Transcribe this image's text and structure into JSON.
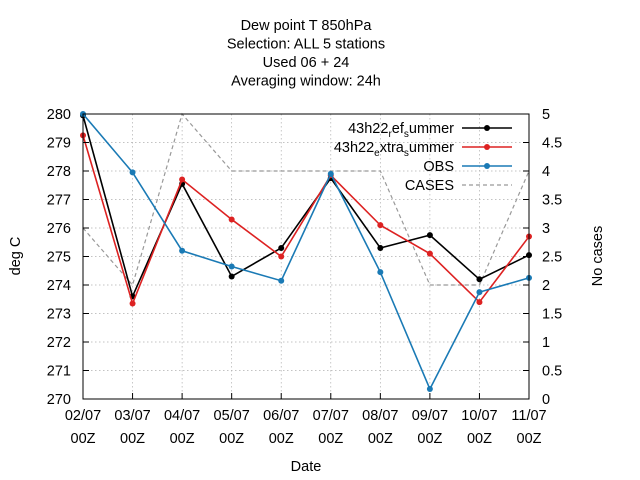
{
  "chart_data": {
    "type": "line",
    "title_lines": [
      "Dew point T 850hPa",
      "Selection: ALL       5 stations",
      "Used  06  + 24",
      "Averaging window: 24h"
    ],
    "xlabel": "Date",
    "ylabel": "deg C",
    "y2label": "No cases",
    "x_ticks": [
      {
        "date": "02/07",
        "hour": "00Z"
      },
      {
        "date": "03/07",
        "hour": "00Z"
      },
      {
        "date": "04/07",
        "hour": "00Z"
      },
      {
        "date": "05/07",
        "hour": "00Z"
      },
      {
        "date": "06/07",
        "hour": "00Z"
      },
      {
        "date": "07/07",
        "hour": "00Z"
      },
      {
        "date": "08/07",
        "hour": "00Z"
      },
      {
        "date": "09/07",
        "hour": "00Z"
      },
      {
        "date": "10/07",
        "hour": "00Z"
      },
      {
        "date": "11/07",
        "hour": "00Z"
      }
    ],
    "ylim": [
      270,
      280
    ],
    "y_ticks": [
      "270",
      "271",
      "272",
      "273",
      "274",
      "275",
      "276",
      "277",
      "278",
      "279",
      "280"
    ],
    "y2lim": [
      0,
      5
    ],
    "y2_ticks": [
      "0",
      "0.5",
      "1",
      "1.5",
      "2",
      "2.5",
      "3",
      "3.5",
      "4",
      "4.5",
      "5"
    ],
    "grid": true,
    "legend_position": "top-right",
    "series": [
      {
        "name": "43h22_ref_summer",
        "legend": {
          "p1": "43h22",
          "s1": "r",
          "p2": "ef",
          "s2": "s",
          "p3": "ummer"
        },
        "color": "#000000",
        "axis": "y",
        "values": [
          279.95,
          273.6,
          277.55,
          274.3,
          275.3,
          277.75,
          275.3,
          275.75,
          274.2,
          275.05
        ]
      },
      {
        "name": "43h22_extra_summer",
        "legend": {
          "p1": "43h22",
          "s1": "e",
          "p2": "xtra",
          "s2": "s",
          "p3": "ummer"
        },
        "color": "#dd2222",
        "axis": "y",
        "values": [
          279.25,
          273.35,
          277.7,
          276.3,
          275.0,
          277.85,
          276.1,
          275.1,
          273.4,
          275.7
        ]
      },
      {
        "name": "OBS",
        "legend": {
          "p1": "OBS"
        },
        "color": "#1a7ab5",
        "axis": "y",
        "values": [
          280.0,
          277.95,
          275.2,
          274.65,
          274.15,
          277.9,
          274.45,
          270.35,
          273.75,
          274.25
        ]
      },
      {
        "name": "CASES",
        "legend": {
          "p1": "CASES"
        },
        "color": "#999999",
        "axis": "y2",
        "dashed": true,
        "values": [
          3,
          2,
          5,
          4,
          4,
          4,
          4,
          2,
          2,
          4
        ]
      }
    ]
  }
}
